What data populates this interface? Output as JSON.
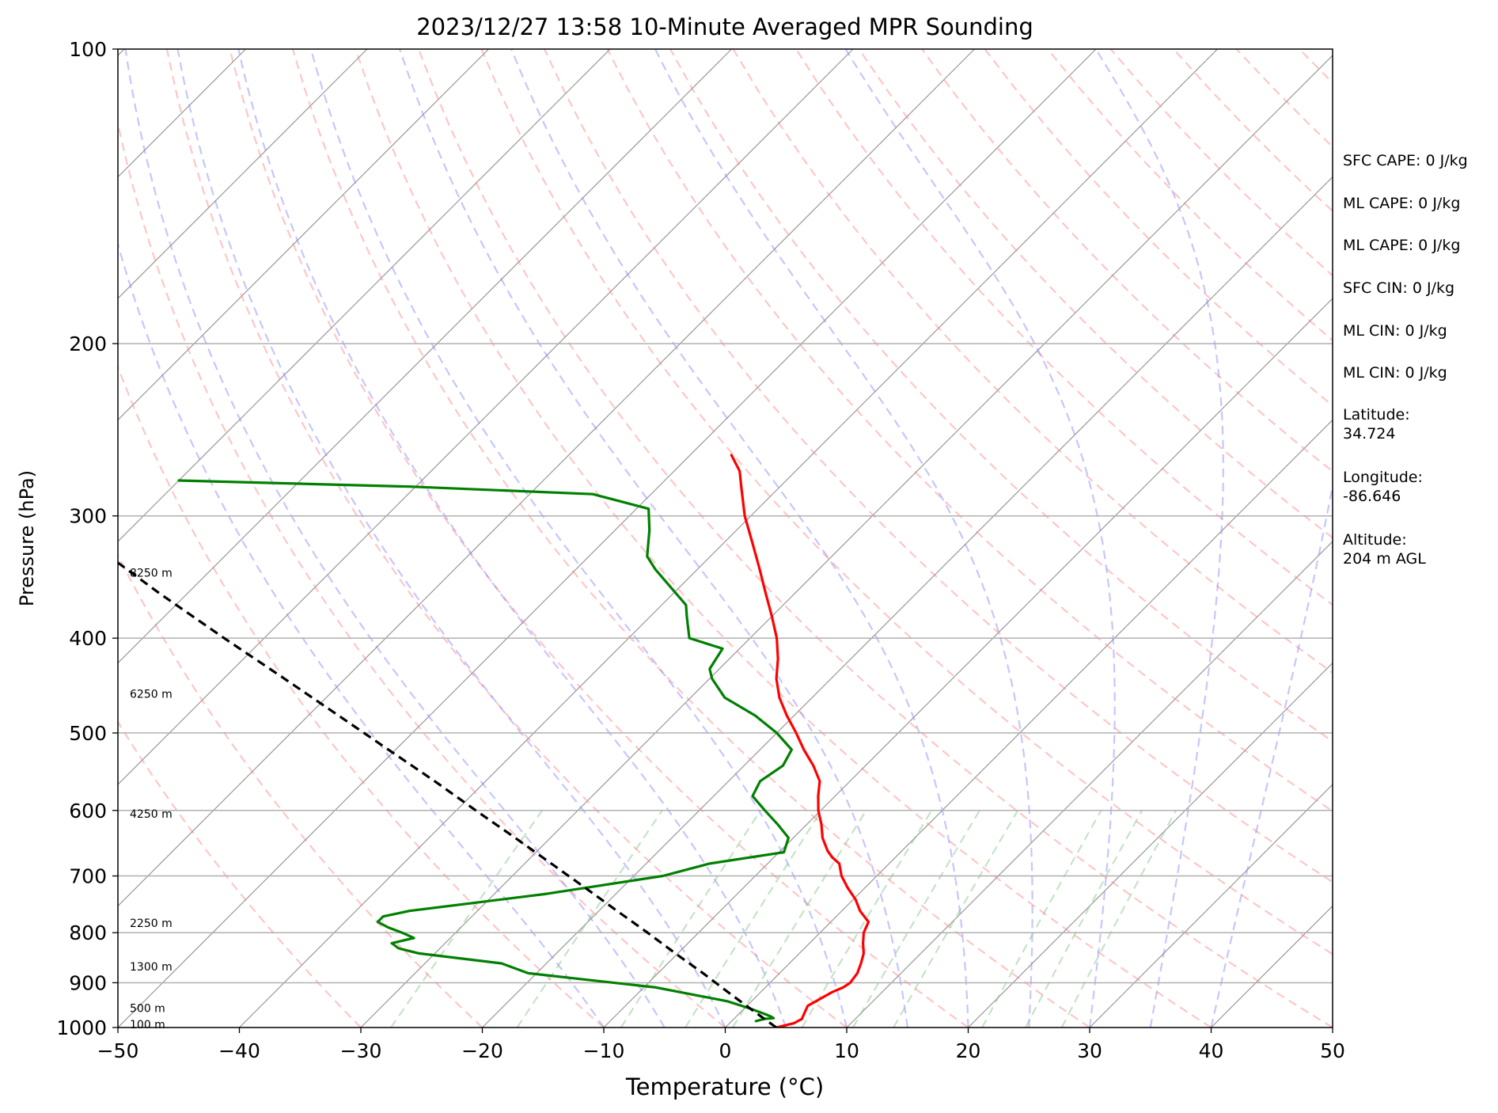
{
  "chart_data": {
    "type": "line",
    "title": "2023/12/27 13:58 10-Minute Averaged MPR Sounding",
    "xlabel": "Temperature (°C)",
    "ylabel": "Pressure (hPa)",
    "xlim": [
      -50,
      50
    ],
    "ylim": [
      1000,
      100
    ],
    "y_scale": "log",
    "skew": "skew-T",
    "x_ticks": [
      "−50",
      "−40",
      "−30",
      "−20",
      "−10",
      "0",
      "10",
      "20",
      "30",
      "40",
      "50"
    ],
    "y_ticks": [
      "100",
      "200",
      "300",
      "400",
      "500",
      "600",
      "700",
      "800",
      "900",
      "1000"
    ],
    "height_labels": [
      {
        "p": 993,
        "label": "100 m"
      },
      {
        "p": 955,
        "label": "500 m"
      },
      {
        "p": 866,
        "label": "1300 m"
      },
      {
        "p": 782,
        "label": "2250 m"
      },
      {
        "p": 605,
        "label": "4250 m"
      },
      {
        "p": 456,
        "label": "6250 m"
      },
      {
        "p": 343,
        "label": "8250 m"
      }
    ],
    "series": [
      {
        "role": "temperature",
        "color": "#ff0000",
        "points": [
          [
            1000,
            4.2
          ],
          [
            990,
            5.3
          ],
          [
            980,
            5.6
          ],
          [
            970,
            5.4
          ],
          [
            960,
            5.2
          ],
          [
            950,
            5.0
          ],
          [
            940,
            5.3
          ],
          [
            930,
            5.6
          ],
          [
            920,
            5.9
          ],
          [
            910,
            6.4
          ],
          [
            900,
            6.6
          ],
          [
            880,
            6.4
          ],
          [
            860,
            5.9
          ],
          [
            840,
            5.3
          ],
          [
            820,
            4.4
          ],
          [
            800,
            3.6
          ],
          [
            780,
            3.1
          ],
          [
            760,
            1.5
          ],
          [
            740,
            0.2
          ],
          [
            720,
            -1.4
          ],
          [
            700,
            -2.9
          ],
          [
            680,
            -4.1
          ],
          [
            670,
            -5.2
          ],
          [
            660,
            -6.1
          ],
          [
            640,
            -7.6
          ],
          [
            620,
            -8.8
          ],
          [
            600,
            -10.2
          ],
          [
            580,
            -11.4
          ],
          [
            560,
            -12.5
          ],
          [
            540,
            -14.3
          ],
          [
            520,
            -16.4
          ],
          [
            500,
            -18.4
          ],
          [
            480,
            -20.6
          ],
          [
            460,
            -22.7
          ],
          [
            440,
            -24.5
          ],
          [
            420,
            -26.0
          ],
          [
            400,
            -27.8
          ],
          [
            380,
            -30.0
          ],
          [
            360,
            -32.4
          ],
          [
            340,
            -34.9
          ],
          [
            320,
            -37.6
          ],
          [
            300,
            -40.5
          ],
          [
            280,
            -43.2
          ],
          [
            270,
            -44.6
          ],
          [
            260,
            -46.6
          ]
        ]
      },
      {
        "role": "dewpoint",
        "color": "#008000",
        "points": [
          [
            985,
            2.0
          ],
          [
            980,
            2.5
          ],
          [
            978,
            3.2
          ],
          [
            975,
            2.9
          ],
          [
            970,
            2.3
          ],
          [
            955,
            0.3
          ],
          [
            940,
            -2.0
          ],
          [
            910,
            -9.0
          ],
          [
            880,
            -20.7
          ],
          [
            860,
            -23.7
          ],
          [
            840,
            -31.3
          ],
          [
            830,
            -33.4
          ],
          [
            820,
            -34.4
          ],
          [
            810,
            -33.0
          ],
          [
            800,
            -34.4
          ],
          [
            790,
            -36.0
          ],
          [
            780,
            -37.3
          ],
          [
            770,
            -37.3
          ],
          [
            760,
            -35.6
          ],
          [
            730,
            -25.7
          ],
          [
            700,
            -17.6
          ],
          [
            680,
            -14.8
          ],
          [
            662,
            -9.6
          ],
          [
            640,
            -10.4
          ],
          [
            620,
            -12.4
          ],
          [
            600,
            -14.6
          ],
          [
            580,
            -16.8
          ],
          [
            560,
            -17.4
          ],
          [
            540,
            -16.8
          ],
          [
            520,
            -17.4
          ],
          [
            500,
            -20.0
          ],
          [
            480,
            -23.2
          ],
          [
            460,
            -27.2
          ],
          [
            440,
            -29.8
          ],
          [
            430,
            -30.8
          ],
          [
            410,
            -31.4
          ],
          [
            400,
            -35.0
          ],
          [
            380,
            -37.0
          ],
          [
            370,
            -38.0
          ],
          [
            340,
            -43.5
          ],
          [
            330,
            -45.2
          ],
          [
            310,
            -47.2
          ],
          [
            295,
            -49.0
          ],
          [
            285,
            -54.8
          ],
          [
            280,
            -70.5
          ],
          [
            276,
            -90.0
          ]
        ]
      },
      {
        "role": "parcel",
        "color": "#000000",
        "points": [
          [
            1000,
            4.2
          ],
          [
            960,
            0.8
          ],
          [
            920,
            -2.7
          ],
          [
            880,
            -6.3
          ],
          [
            840,
            -10.2
          ],
          [
            800,
            -14.2
          ],
          [
            760,
            -18.5
          ],
          [
            720,
            -23.0
          ],
          [
            680,
            -27.8
          ],
          [
            640,
            -32.9
          ],
          [
            600,
            -38.4
          ],
          [
            560,
            -44.2
          ],
          [
            520,
            -50.6
          ],
          [
            480,
            -57.5
          ],
          [
            440,
            -65.0
          ],
          [
            400,
            -73.3
          ],
          [
            360,
            -82.3
          ],
          [
            320,
            -92.0
          ],
          [
            300,
            -97.0
          ],
          [
            280,
            -102.5
          ],
          [
            260,
            -108.0
          ]
        ]
      }
    ],
    "background_lines": {
      "isotherm_color": "#808080",
      "dry_adiabat_color": "#ff8080",
      "moist_adiabat_color": "#8080ff",
      "mixing_ratio_color": "#80c080"
    },
    "grid": true
  },
  "stats": [
    "SFC CAPE: 0 J/kg",
    "ML CAPE: 0 J/kg",
    "ML CAPE: 0 J/kg",
    "SFC CIN: 0 J/kg",
    "ML CIN: 0 J/kg",
    "ML CIN: 0 J/kg",
    "Latitude:\n34.724",
    "Longitude:\n-86.646",
    "Altitude:\n204 m AGL"
  ]
}
